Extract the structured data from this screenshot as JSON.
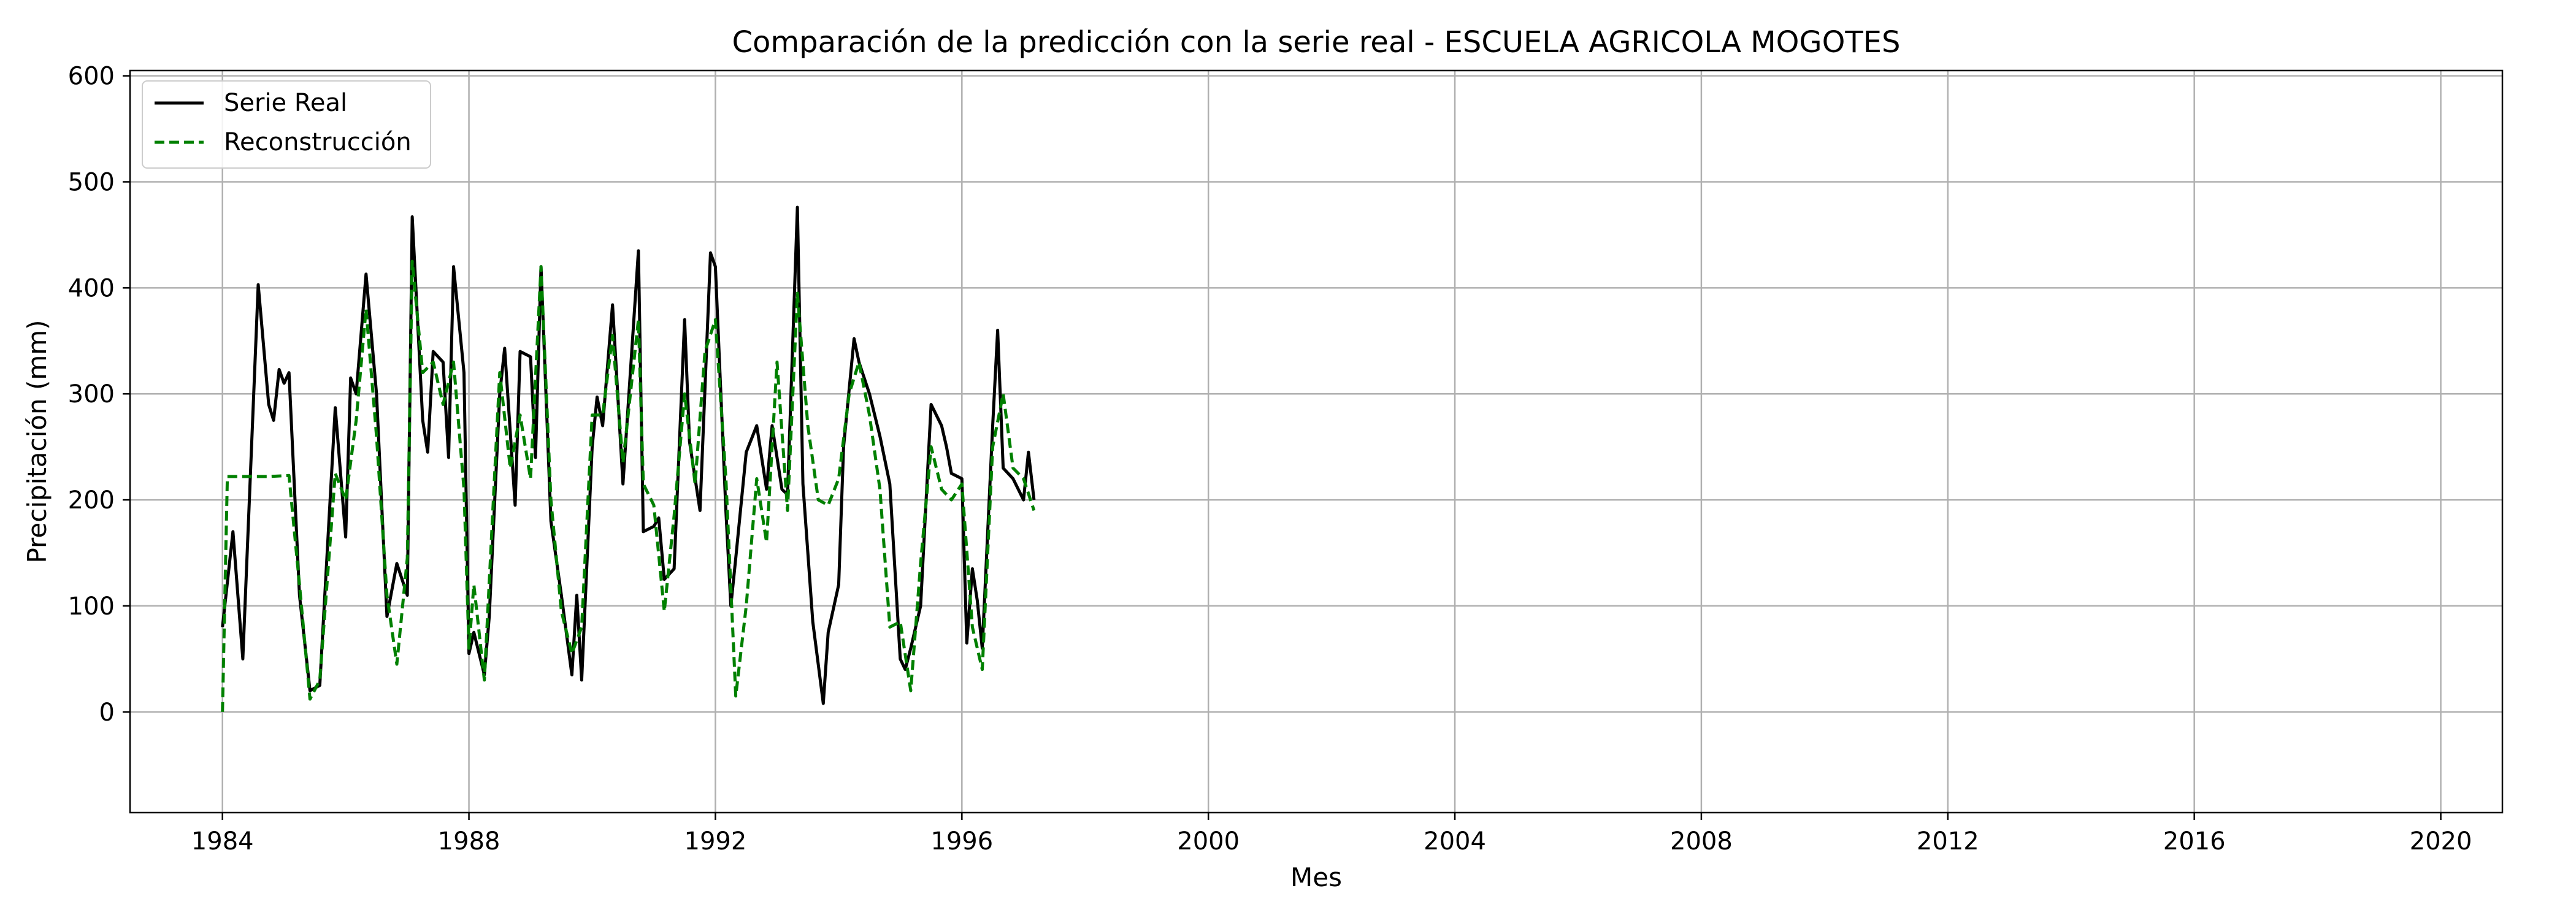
{
  "chart_data": {
    "type": "line",
    "title": "Comparación de la predicción con la serie real - ESCUELA AGRICOLA MOGOTES",
    "xlabel": "Mes",
    "ylabel": "Precipitación (mm)",
    "xlim": [
      1982.5,
      2021.0
    ],
    "ylim": [
      -95,
      605
    ],
    "xticks": [
      1984,
      1988,
      1992,
      1996,
      2000,
      2004,
      2008,
      2012,
      2016,
      2020
    ],
    "yticks": [
      0,
      100,
      200,
      300,
      400,
      500,
      600
    ],
    "grid": true,
    "legend_position": "top-left",
    "colors": {
      "real": "#000000",
      "reconstruccion": "#008000",
      "grid": "#b0b0b0"
    },
    "series": [
      {
        "name": "Serie Real",
        "style": "solid",
        "points": [
          [
            1984.0,
            80
          ],
          [
            1984.17,
            170
          ],
          [
            1984.33,
            50
          ],
          [
            1984.58,
            403
          ],
          [
            1984.75,
            290
          ],
          [
            1984.83,
            275
          ],
          [
            1984.92,
            323
          ],
          [
            1985.0,
            310
          ],
          [
            1985.08,
            320
          ],
          [
            1985.25,
            110
          ],
          [
            1985.42,
            20
          ],
          [
            1985.58,
            25
          ],
          [
            1985.83,
            287
          ],
          [
            1986.0,
            165
          ],
          [
            1986.08,
            315
          ],
          [
            1986.17,
            300
          ],
          [
            1986.33,
            413
          ],
          [
            1986.5,
            300
          ],
          [
            1986.67,
            90
          ],
          [
            1986.83,
            140
          ],
          [
            1987.0,
            110
          ],
          [
            1987.08,
            467
          ],
          [
            1987.25,
            275
          ],
          [
            1987.33,
            245
          ],
          [
            1987.42,
            340
          ],
          [
            1987.58,
            330
          ],
          [
            1987.67,
            240
          ],
          [
            1987.75,
            420
          ],
          [
            1987.92,
            320
          ],
          [
            1988.0,
            55
          ],
          [
            1988.08,
            75
          ],
          [
            1988.25,
            35
          ],
          [
            1988.33,
            90
          ],
          [
            1988.5,
            300
          ],
          [
            1988.58,
            343
          ],
          [
            1988.75,
            195
          ],
          [
            1988.83,
            340
          ],
          [
            1989.0,
            335
          ],
          [
            1989.08,
            240
          ],
          [
            1989.17,
            420
          ],
          [
            1989.33,
            180
          ],
          [
            1989.5,
            110
          ],
          [
            1989.67,
            35
          ],
          [
            1989.75,
            110
          ],
          [
            1989.83,
            30
          ],
          [
            1990.0,
            250
          ],
          [
            1990.08,
            297
          ],
          [
            1990.17,
            270
          ],
          [
            1990.33,
            384
          ],
          [
            1990.5,
            215
          ],
          [
            1990.75,
            435
          ],
          [
            1990.83,
            170
          ],
          [
            1991.0,
            175
          ],
          [
            1991.08,
            183
          ],
          [
            1991.17,
            125
          ],
          [
            1991.33,
            135
          ],
          [
            1991.5,
            370
          ],
          [
            1991.58,
            255
          ],
          [
            1991.75,
            190
          ],
          [
            1991.92,
            433
          ],
          [
            1992.0,
            420
          ],
          [
            1992.17,
            190
          ],
          [
            1992.25,
            100
          ],
          [
            1992.33,
            145
          ],
          [
            1992.5,
            245
          ],
          [
            1992.67,
            270
          ],
          [
            1992.83,
            210
          ],
          [
            1992.92,
            270
          ],
          [
            1993.08,
            210
          ],
          [
            1993.17,
            205
          ],
          [
            1993.33,
            476
          ],
          [
            1993.42,
            215
          ],
          [
            1993.58,
            85
          ],
          [
            1993.75,
            8
          ],
          [
            1993.83,
            75
          ],
          [
            1994.0,
            120
          ],
          [
            1994.08,
            250
          ],
          [
            1994.25,
            352
          ],
          [
            1994.33,
            330
          ],
          [
            1994.5,
            300
          ],
          [
            1994.67,
            260
          ],
          [
            1994.83,
            215
          ],
          [
            1995.0,
            50
          ],
          [
            1995.08,
            40
          ],
          [
            1995.17,
            60
          ],
          [
            1995.33,
            100
          ],
          [
            1995.5,
            290
          ],
          [
            1995.67,
            270
          ],
          [
            1995.75,
            250
          ],
          [
            1995.83,
            225
          ],
          [
            1996.0,
            220
          ],
          [
            1996.08,
            65
          ],
          [
            1996.17,
            135
          ],
          [
            1996.25,
            105
          ],
          [
            1996.33,
            60
          ],
          [
            1996.5,
            270
          ],
          [
            1996.58,
            360
          ],
          [
            1996.67,
            230
          ],
          [
            1996.83,
            220
          ],
          [
            1997.0,
            200
          ],
          [
            1997.08,
            245
          ],
          [
            1997.17,
            200
          ]
        ]
      },
      {
        "name": "Reconstrucción",
        "style": "dashed",
        "points": [
          [
            1984.0,
            0
          ],
          [
            1984.08,
            222
          ],
          [
            1984.25,
            222
          ],
          [
            1984.5,
            222
          ],
          [
            1984.75,
            222
          ],
          [
            1985.08,
            223
          ],
          [
            1985.25,
            120
          ],
          [
            1985.42,
            12
          ],
          [
            1985.58,
            30
          ],
          [
            1985.83,
            225
          ],
          [
            1986.0,
            200
          ],
          [
            1986.17,
            275
          ],
          [
            1986.33,
            380
          ],
          [
            1986.5,
            260
          ],
          [
            1986.67,
            110
          ],
          [
            1986.83,
            45
          ],
          [
            1987.0,
            145
          ],
          [
            1987.08,
            425
          ],
          [
            1987.25,
            320
          ],
          [
            1987.42,
            330
          ],
          [
            1987.58,
            290
          ],
          [
            1987.75,
            330
          ],
          [
            1987.92,
            210
          ],
          [
            1988.0,
            60
          ],
          [
            1988.08,
            120
          ],
          [
            1988.25,
            30
          ],
          [
            1988.5,
            320
          ],
          [
            1988.67,
            230
          ],
          [
            1988.83,
            280
          ],
          [
            1989.0,
            220
          ],
          [
            1989.17,
            420
          ],
          [
            1989.33,
            200
          ],
          [
            1989.5,
            95
          ],
          [
            1989.67,
            55
          ],
          [
            1989.83,
            80
          ],
          [
            1990.0,
            280
          ],
          [
            1990.17,
            280
          ],
          [
            1990.33,
            355
          ],
          [
            1990.5,
            235
          ],
          [
            1990.75,
            370
          ],
          [
            1990.83,
            215
          ],
          [
            1991.0,
            195
          ],
          [
            1991.17,
            95
          ],
          [
            1991.33,
            185
          ],
          [
            1991.5,
            300
          ],
          [
            1991.67,
            215
          ],
          [
            1991.83,
            340
          ],
          [
            1992.0,
            370
          ],
          [
            1992.17,
            220
          ],
          [
            1992.33,
            15
          ],
          [
            1992.5,
            100
          ],
          [
            1992.67,
            220
          ],
          [
            1992.83,
            160
          ],
          [
            1993.0,
            330
          ],
          [
            1993.17,
            190
          ],
          [
            1993.33,
            395
          ],
          [
            1993.5,
            270
          ],
          [
            1993.67,
            200
          ],
          [
            1993.83,
            195
          ],
          [
            1994.0,
            220
          ],
          [
            1994.17,
            300
          ],
          [
            1994.33,
            330
          ],
          [
            1994.5,
            280
          ],
          [
            1994.67,
            210
          ],
          [
            1994.83,
            80
          ],
          [
            1995.0,
            85
          ],
          [
            1995.17,
            20
          ],
          [
            1995.33,
            140
          ],
          [
            1995.5,
            250
          ],
          [
            1995.67,
            210
          ],
          [
            1995.83,
            200
          ],
          [
            1996.0,
            215
          ],
          [
            1996.17,
            80
          ],
          [
            1996.33,
            40
          ],
          [
            1996.5,
            250
          ],
          [
            1996.67,
            300
          ],
          [
            1996.83,
            230
          ],
          [
            1997.0,
            220
          ],
          [
            1997.17,
            190
          ]
        ]
      }
    ]
  },
  "legend": {
    "entries": [
      "Serie Real",
      "Reconstrucción"
    ]
  }
}
